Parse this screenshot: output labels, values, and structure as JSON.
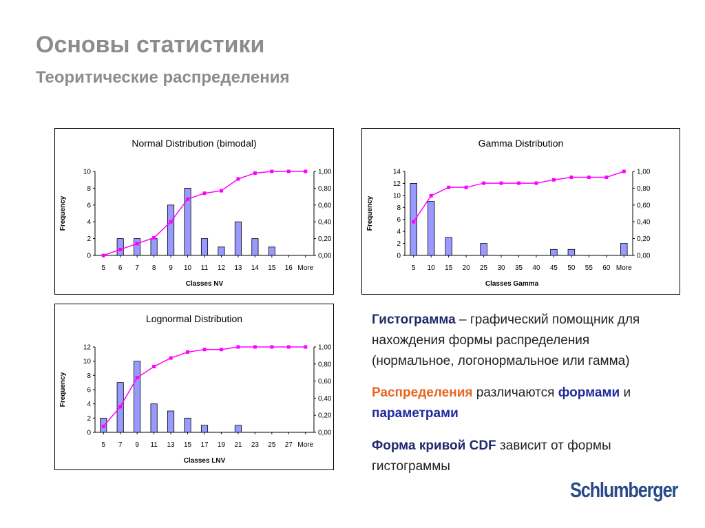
{
  "page": {
    "title": "Основы статистики",
    "subtitle": "Теоритические распределения"
  },
  "colors": {
    "bar": "#9999ff",
    "line": "#ff00ff",
    "text_navy": "#1f2a6b",
    "text_orange": "#e8641e",
    "text_blue": "#1f2a9b"
  },
  "chart_data": [
    {
      "type": "bar",
      "title": "Normal Distribution (bimodal)",
      "xlabel": "Classes NV",
      "ylabel": "Frequency",
      "categories": [
        "5",
        "6",
        "7",
        "8",
        "9",
        "10",
        "11",
        "12",
        "13",
        "14",
        "15",
        "16",
        "More"
      ],
      "ylim": [
        0,
        10
      ],
      "y_ticks": [
        "0",
        "2",
        "4",
        "6",
        "8",
        "10"
      ],
      "y2lim": [
        0,
        1
      ],
      "y2_ticks": [
        "0,00",
        "0,20",
        "0,40",
        "0,60",
        "0,80",
        "1,00"
      ],
      "series": [
        {
          "values": [
            0,
            2,
            2,
            2,
            6,
            8,
            2,
            1,
            4,
            2,
            1,
            0,
            0
          ]
        },
        {
          "values": [
            0.0,
            0.07,
            0.14,
            0.21,
            0.4,
            0.67,
            0.74,
            0.77,
            0.91,
            0.98,
            1.0,
            1.0,
            1.0
          ]
        }
      ]
    },
    {
      "type": "bar",
      "title": "Gamma Distribution",
      "xlabel": "Classes Gamma",
      "ylabel": "Frequency",
      "categories": [
        "5",
        "10",
        "15",
        "20",
        "25",
        "30",
        "35",
        "40",
        "45",
        "50",
        "55",
        "60",
        "More"
      ],
      "ylim": [
        0,
        14
      ],
      "y_ticks": [
        "0",
        "2",
        "4",
        "6",
        "8",
        "10",
        "12",
        "14"
      ],
      "y2lim": [
        0,
        1
      ],
      "y2_ticks": [
        "0,00",
        "0,20",
        "0,40",
        "0,60",
        "0,80",
        "1,00"
      ],
      "series": [
        {
          "values": [
            12,
            9,
            3,
            0,
            2,
            0,
            0,
            0,
            1,
            1,
            0,
            0,
            2
          ]
        },
        {
          "values": [
            0.4,
            0.71,
            0.81,
            0.81,
            0.86,
            0.86,
            0.86,
            0.86,
            0.9,
            0.93,
            0.93,
            0.93,
            1.0
          ]
        }
      ]
    },
    {
      "type": "bar",
      "title": "Lognormal Distribution",
      "xlabel": "Classes LNV",
      "ylabel": "Frequency",
      "categories": [
        "5",
        "7",
        "9",
        "11",
        "13",
        "15",
        "17",
        "19",
        "21",
        "23",
        "25",
        "27",
        "More"
      ],
      "ylim": [
        0,
        12
      ],
      "y_ticks": [
        "0",
        "2",
        "4",
        "6",
        "8",
        "10",
        "12"
      ],
      "y2lim": [
        0,
        1
      ],
      "y2_ticks": [
        "0,00",
        "0,20",
        "0,40",
        "0,60",
        "0,80",
        "1,00"
      ],
      "series": [
        {
          "values": [
            2,
            7,
            10,
            4,
            3,
            2,
            1,
            0,
            1,
            0,
            0,
            0,
            0
          ]
        },
        {
          "values": [
            0.07,
            0.3,
            0.64,
            0.77,
            0.87,
            0.94,
            0.97,
            0.97,
            1.0,
            1.0,
            1.0,
            1.0,
            1.0
          ]
        }
      ]
    }
  ],
  "text": {
    "p1_bold": "Гистограмма",
    "p1_rest": " – графический помощник для нахождения формы распределения (нормальное, логонормальное или гамма)",
    "p2_a": "Распределения",
    "p2_b": " различаются ",
    "p2_c": "формами",
    "p2_d": " и ",
    "p2_e": "параметрами",
    "p3_bold": "Форма кривой CDF",
    "p3_rest": "  зависит от формы гистограммы"
  },
  "logo": "Schlumberger"
}
